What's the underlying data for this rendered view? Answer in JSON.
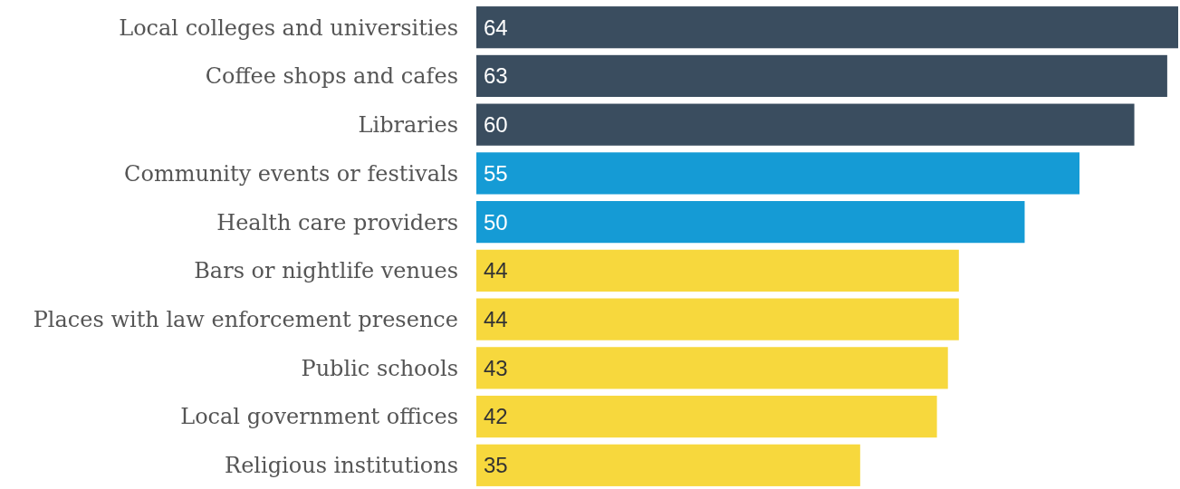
{
  "chart_data": {
    "type": "bar",
    "orientation": "horizontal",
    "data_labels": true,
    "categories": [
      "Local colleges and universities",
      "Coffee shops and cafes",
      "Libraries",
      "Community events or festivals",
      "Health care providers",
      "Bars or nightlife venues",
      "Places with law enforcement presence",
      "Public schools",
      "Local government offices",
      "Religious institutions"
    ],
    "values": [
      64,
      63,
      60,
      55,
      50,
      44,
      44,
      43,
      42,
      35
    ],
    "colors": [
      "#3a4d5f",
      "#3a4d5f",
      "#3a4d5f",
      "#159bd5",
      "#159bd5",
      "#f7d83d",
      "#f7d83d",
      "#f7d83d",
      "#f7d83d",
      "#f7d83d"
    ]
  }
}
